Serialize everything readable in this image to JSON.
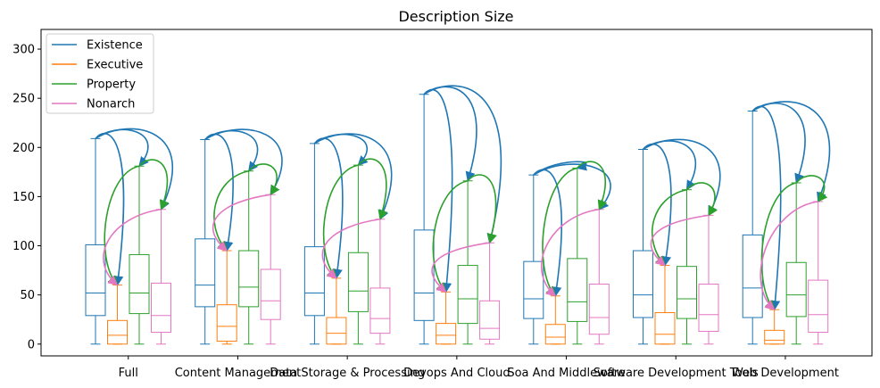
{
  "chart_data": {
    "type": "boxplot",
    "title": "Description Size",
    "xlabel": "",
    "ylabel": "",
    "ylim": [
      -12,
      320
    ],
    "yticks": [
      0,
      50,
      100,
      150,
      200,
      250,
      300
    ],
    "grid": false,
    "legend_position": "top-left",
    "categories": [
      "Full",
      "Content Management",
      "Data Storage & Processing",
      "Devops And Cloud",
      "Soa And Middleware",
      "Software Development Tools",
      "Web Development"
    ],
    "series": [
      {
        "name": "Existence",
        "color": "#1f77b4",
        "boxes": [
          {
            "whislo": 0,
            "q1": 29,
            "med": 52,
            "q3": 101,
            "whishi": 209
          },
          {
            "whislo": 0,
            "q1": 38,
            "med": 60,
            "q3": 107,
            "whishi": 208
          },
          {
            "whislo": 0,
            "q1": 29,
            "med": 52,
            "q3": 99,
            "whishi": 204
          },
          {
            "whislo": 0,
            "q1": 24,
            "med": 52,
            "q3": 116,
            "whishi": 254
          },
          {
            "whislo": 0,
            "q1": 26,
            "med": 46,
            "q3": 84,
            "whishi": 172
          },
          {
            "whislo": 0,
            "q1": 27,
            "med": 50,
            "q3": 95,
            "whishi": 198
          },
          {
            "whislo": 0,
            "q1": 27,
            "med": 57,
            "q3": 111,
            "whishi": 237
          }
        ]
      },
      {
        "name": "Executive",
        "color": "#ff7f0e",
        "boxes": [
          {
            "whislo": 0,
            "q1": 0,
            "med": 9,
            "q3": 24,
            "whishi": 60
          },
          {
            "whislo": 0,
            "q1": 3,
            "med": 18,
            "q3": 40,
            "whishi": 95
          },
          {
            "whislo": 0,
            "q1": 0,
            "med": 11,
            "q3": 27,
            "whishi": 67
          },
          {
            "whislo": 0,
            "q1": 0,
            "med": 9,
            "q3": 21,
            "whishi": 53
          },
          {
            "whislo": 0,
            "q1": 0,
            "med": 7,
            "q3": 20,
            "whishi": 49
          },
          {
            "whislo": 0,
            "q1": 0,
            "med": 10,
            "q3": 32,
            "whishi": 80
          },
          {
            "whislo": 0,
            "q1": 0,
            "med": 4,
            "q3": 14,
            "whishi": 35
          }
        ]
      },
      {
        "name": "Property",
        "color": "#2ca02c",
        "boxes": [
          {
            "whislo": 0,
            "q1": 31,
            "med": 52,
            "q3": 91,
            "whishi": 181
          },
          {
            "whislo": 0,
            "q1": 38,
            "med": 58,
            "q3": 95,
            "whishi": 176
          },
          {
            "whislo": 0,
            "q1": 33,
            "med": 54,
            "q3": 93,
            "whishi": 182
          },
          {
            "whislo": 0,
            "q1": 21,
            "med": 46,
            "q3": 80,
            "whishi": 166
          },
          {
            "whislo": 0,
            "q1": 23,
            "med": 43,
            "q3": 87,
            "whishi": 179
          },
          {
            "whislo": 0,
            "q1": 26,
            "med": 46,
            "q3": 79,
            "whishi": 157
          },
          {
            "whislo": 0,
            "q1": 28,
            "med": 50,
            "q3": 83,
            "whishi": 164
          }
        ]
      },
      {
        "name": "Nonarch",
        "color": "#e377c2",
        "boxes": [
          {
            "whislo": 0,
            "q1": 12,
            "med": 29,
            "q3": 62,
            "whishi": 137
          },
          {
            "whislo": 0,
            "q1": 25,
            "med": 44,
            "q3": 76,
            "whishi": 152
          },
          {
            "whislo": 0,
            "q1": 11,
            "med": 26,
            "q3": 57,
            "whishi": 127
          },
          {
            "whislo": 0,
            "q1": 5,
            "med": 16,
            "q3": 44,
            "whishi": 103
          },
          {
            "whislo": 0,
            "q1": 10,
            "med": 27,
            "q3": 61,
            "whishi": 137
          },
          {
            "whislo": 0,
            "q1": 13,
            "med": 30,
            "q3": 61,
            "whishi": 131
          },
          {
            "whislo": 0,
            "q1": 12,
            "med": 30,
            "q3": 65,
            "whishi": 145
          }
        ]
      }
    ],
    "arrows_note_from": "whisker top of each box",
    "arrows": [
      {
        "from": "Existence",
        "to": "Executive"
      },
      {
        "from": "Existence",
        "to": "Property"
      },
      {
        "from": "Existence",
        "to": "Nonarch"
      },
      {
        "from": "Property",
        "to": "Executive"
      },
      {
        "from": "Property",
        "to": "Nonarch"
      },
      {
        "from": "Nonarch",
        "to": "Executive"
      }
    ]
  }
}
